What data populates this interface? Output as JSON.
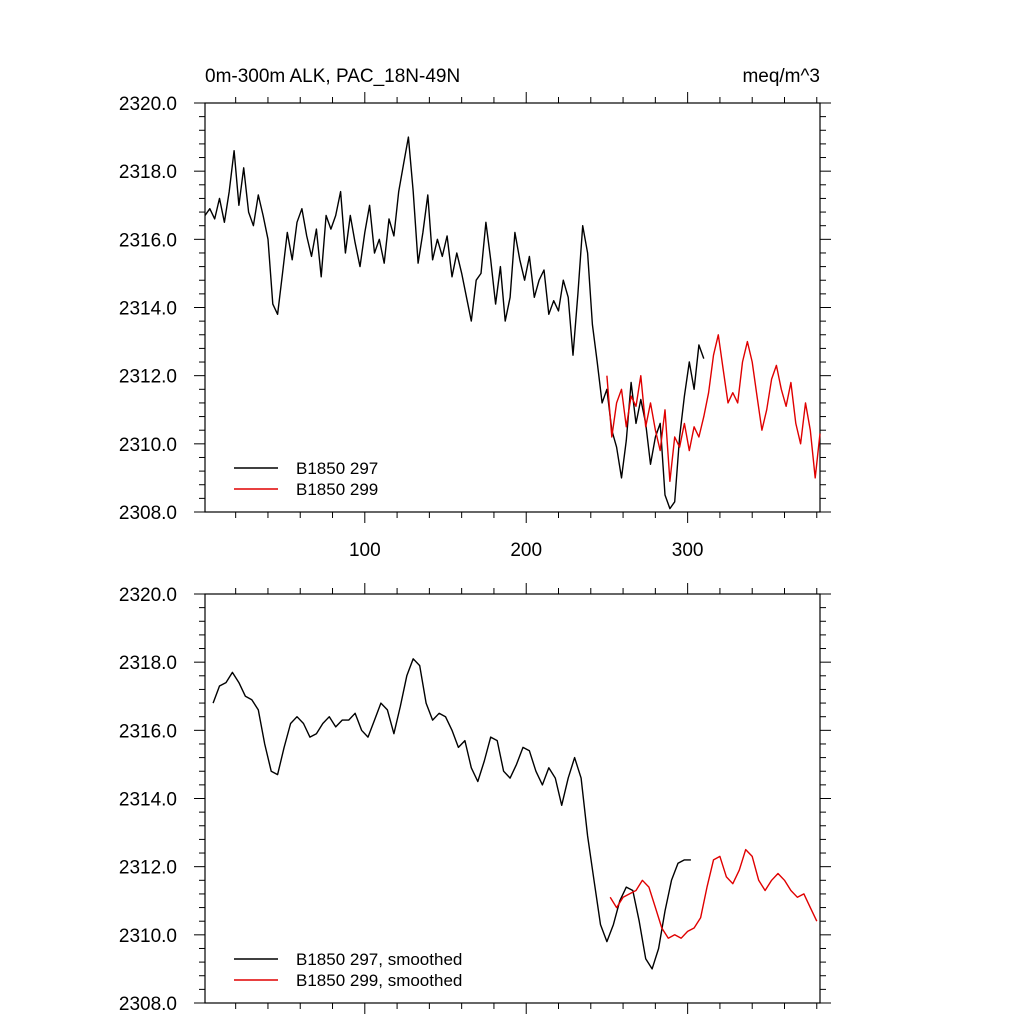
{
  "header": {
    "title": "0m-300m ALK, PAC_18N-49N",
    "units": "meq/m^3"
  },
  "colors": {
    "series_297": "#000000",
    "series_299": "#e00000"
  },
  "chart_data": [
    {
      "type": "line",
      "panel": "raw",
      "xlim": [
        1,
        382
      ],
      "ylim": [
        2308,
        2320
      ],
      "yticks": [
        2308,
        2310,
        2312,
        2314,
        2316,
        2318,
        2320
      ],
      "ytick_labels": [
        "2308.0",
        "2310.0",
        "2312.0",
        "2314.0",
        "2316.0",
        "2318.0",
        "2320.0"
      ],
      "xticks": [
        100,
        200,
        300
      ],
      "xtick_labels": [
        "100",
        "200",
        "300"
      ],
      "grid": false,
      "legend_position": "bottom-left",
      "series": [
        {
          "name": "B1850 297",
          "color": "#000000",
          "x": [
            1,
            4,
            7,
            10,
            13,
            16,
            19,
            22,
            25,
            28,
            31,
            34,
            37,
            40,
            43,
            46,
            49,
            52,
            55,
            58,
            61,
            64,
            67,
            70,
            73,
            76,
            79,
            82,
            85,
            88,
            91,
            94,
            97,
            100,
            103,
            106,
            109,
            112,
            115,
            118,
            121,
            124,
            127,
            130,
            133,
            136,
            139,
            142,
            145,
            148,
            151,
            154,
            157,
            160,
            163,
            166,
            169,
            172,
            175,
            178,
            181,
            184,
            187,
            190,
            193,
            196,
            199,
            202,
            205,
            208,
            211,
            214,
            217,
            220,
            223,
            226,
            229,
            232,
            235,
            238,
            241,
            244,
            247,
            250,
            253,
            256,
            259,
            262,
            265,
            268,
            271,
            274,
            277,
            280,
            283,
            286,
            289,
            292,
            295,
            298,
            301,
            304,
            307,
            310
          ],
          "values": [
            2316.7,
            2316.9,
            2316.6,
            2317.2,
            2316.5,
            2317.4,
            2318.6,
            2317.0,
            2318.1,
            2316.8,
            2316.4,
            2317.3,
            2316.7,
            2316.0,
            2314.1,
            2313.8,
            2315.0,
            2316.2,
            2315.4,
            2316.5,
            2316.9,
            2316.1,
            2315.5,
            2316.3,
            2314.9,
            2316.7,
            2316.3,
            2316.7,
            2317.4,
            2315.6,
            2316.7,
            2315.9,
            2315.2,
            2316.2,
            2317.0,
            2315.6,
            2316.0,
            2315.3,
            2316.6,
            2316.1,
            2317.4,
            2318.2,
            2319.0,
            2317.4,
            2315.3,
            2316.2,
            2317.3,
            2315.4,
            2316.0,
            2315.5,
            2316.1,
            2314.9,
            2315.6,
            2315.0,
            2314.3,
            2313.6,
            2314.8,
            2315.0,
            2316.5,
            2315.4,
            2314.1,
            2315.2,
            2313.6,
            2314.3,
            2316.2,
            2315.4,
            2314.8,
            2315.5,
            2314.3,
            2314.8,
            2315.1,
            2313.8,
            2314.2,
            2313.9,
            2314.8,
            2314.3,
            2312.6,
            2314.4,
            2316.4,
            2315.6,
            2313.5,
            2312.4,
            2311.2,
            2311.6,
            2310.4,
            2309.9,
            2309.0,
            2310.1,
            2311.8,
            2310.6,
            2311.3,
            2310.6,
            2309.4,
            2310.2,
            2310.6,
            2308.5,
            2308.1,
            2308.3,
            2310.2,
            2311.4,
            2312.4,
            2311.6,
            2312.9,
            2312.5
          ]
        },
        {
          "name": "B1850 299",
          "color": "#e00000",
          "x": [
            250,
            253,
            256,
            259,
            262,
            265,
            268,
            271,
            274,
            277,
            280,
            283,
            286,
            289,
            292,
            295,
            298,
            301,
            304,
            307,
            310,
            313,
            316,
            319,
            322,
            325,
            328,
            331,
            334,
            337,
            340,
            343,
            346,
            349,
            352,
            355,
            358,
            361,
            364,
            367,
            370,
            373,
            376,
            379,
            382
          ],
          "values": [
            2312.0,
            2310.2,
            2311.2,
            2311.6,
            2310.5,
            2311.4,
            2311.1,
            2312.0,
            2310.5,
            2311.2,
            2310.4,
            2309.8,
            2311.0,
            2308.9,
            2310.2,
            2309.9,
            2310.6,
            2309.8,
            2310.5,
            2310.2,
            2310.8,
            2311.5,
            2312.6,
            2313.2,
            2312.2,
            2311.2,
            2311.5,
            2311.2,
            2312.4,
            2313.0,
            2312.4,
            2311.4,
            2310.4,
            2311.0,
            2311.9,
            2312.3,
            2311.6,
            2311.1,
            2311.8,
            2310.6,
            2310.0,
            2311.2,
            2310.4,
            2309.0,
            2310.3
          ]
        }
      ]
    },
    {
      "type": "line",
      "panel": "smoothed",
      "xlim": [
        1,
        382
      ],
      "ylim": [
        2308,
        2320
      ],
      "yticks": [
        2308,
        2310,
        2312,
        2314,
        2316,
        2318,
        2320
      ],
      "ytick_labels": [
        "2308.0",
        "2310.0",
        "2312.0",
        "2314.0",
        "2316.0",
        "2318.0",
        "2320.0"
      ],
      "xticks": [
        100,
        200,
        300
      ],
      "grid": false,
      "legend_position": "bottom-left",
      "series": [
        {
          "name": "B1850 297, smoothed",
          "color": "#000000",
          "x": [
            6,
            10,
            14,
            18,
            22,
            26,
            30,
            34,
            38,
            42,
            46,
            50,
            54,
            58,
            62,
            66,
            70,
            74,
            78,
            82,
            86,
            90,
            94,
            98,
            102,
            106,
            110,
            114,
            118,
            122,
            126,
            130,
            134,
            138,
            142,
            146,
            150,
            154,
            158,
            162,
            166,
            170,
            174,
            178,
            182,
            186,
            190,
            194,
            198,
            202,
            206,
            210,
            214,
            218,
            222,
            226,
            230,
            234,
            238,
            242,
            246,
            250,
            254,
            258,
            262,
            266,
            270,
            274,
            278,
            282,
            286,
            290,
            294,
            298,
            302
          ],
          "values": [
            2316.8,
            2317.3,
            2317.4,
            2317.7,
            2317.4,
            2317.0,
            2316.9,
            2316.6,
            2315.6,
            2314.8,
            2314.7,
            2315.5,
            2316.2,
            2316.4,
            2316.2,
            2315.8,
            2315.9,
            2316.2,
            2316.4,
            2316.1,
            2316.3,
            2316.3,
            2316.5,
            2316.0,
            2315.8,
            2316.3,
            2316.8,
            2316.6,
            2315.9,
            2316.7,
            2317.6,
            2318.1,
            2317.9,
            2316.8,
            2316.3,
            2316.5,
            2316.4,
            2316.0,
            2315.5,
            2315.7,
            2314.9,
            2314.5,
            2315.1,
            2315.8,
            2315.7,
            2314.8,
            2314.6,
            2315.0,
            2315.5,
            2315.4,
            2314.8,
            2314.4,
            2314.9,
            2314.6,
            2313.8,
            2314.6,
            2315.2,
            2314.6,
            2312.9,
            2311.6,
            2310.3,
            2309.8,
            2310.3,
            2311.0,
            2311.4,
            2311.3,
            2310.4,
            2309.3,
            2309.0,
            2309.6,
            2310.7,
            2311.6,
            2312.1,
            2312.2,
            2312.2
          ]
        },
        {
          "name": "B1850 299, smoothed",
          "color": "#e00000",
          "x": [
            252,
            256,
            260,
            264,
            268,
            272,
            276,
            280,
            284,
            288,
            292,
            296,
            300,
            304,
            308,
            312,
            316,
            320,
            324,
            328,
            332,
            336,
            340,
            344,
            348,
            352,
            356,
            360,
            364,
            368,
            372,
            376,
            380
          ],
          "values": [
            2311.1,
            2310.8,
            2311.1,
            2311.2,
            2311.3,
            2311.6,
            2311.4,
            2310.8,
            2310.2,
            2309.9,
            2310.0,
            2309.9,
            2310.1,
            2310.2,
            2310.5,
            2311.4,
            2312.2,
            2312.3,
            2311.7,
            2311.5,
            2311.9,
            2312.5,
            2312.3,
            2311.6,
            2311.3,
            2311.6,
            2311.8,
            2311.6,
            2311.3,
            2311.1,
            2311.2,
            2310.8,
            2310.4
          ]
        }
      ]
    }
  ]
}
